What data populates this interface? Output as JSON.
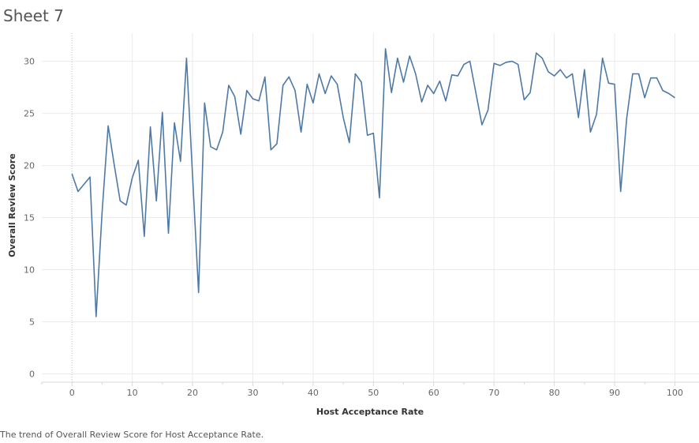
{
  "sheet": {
    "title": "Sheet 7",
    "caption": "The trend of Overall Review Score for Host Acceptance Rate."
  },
  "colors": {
    "line": "#4e79a7"
  },
  "chart_data": {
    "type": "line",
    "xlabel": "Host Acceptance Rate",
    "ylabel": "Overall Review Score",
    "xlim": [
      -5,
      104
    ],
    "ylim": [
      -0.8,
      32.7
    ],
    "xticks": [
      0,
      10,
      20,
      30,
      40,
      50,
      60,
      70,
      80,
      90,
      100
    ],
    "yticks": [
      0,
      5,
      10,
      15,
      20,
      25,
      30
    ],
    "grid": true,
    "legend": "none",
    "series": [
      {
        "x": [
          0,
          1,
          3,
          4,
          5,
          6,
          7,
          8,
          9,
          10,
          11,
          12,
          13,
          14,
          15,
          16,
          17,
          18,
          19,
          21,
          22,
          23,
          24,
          25,
          26,
          27,
          28,
          29,
          30,
          31,
          32,
          33,
          34,
          35,
          36,
          37,
          38,
          39,
          40,
          41,
          42,
          43,
          44,
          45,
          46,
          47,
          48,
          49,
          50,
          51,
          52,
          53,
          54,
          55,
          56,
          57,
          58,
          59,
          60,
          61,
          62,
          63,
          64,
          65,
          66,
          68,
          69,
          70,
          71,
          72,
          73,
          74,
          75,
          76,
          77,
          78,
          79,
          80,
          81,
          82,
          83,
          84,
          85,
          86,
          87,
          88,
          89,
          90,
          91,
          92,
          93,
          94,
          95,
          96,
          97,
          98,
          99,
          100
        ],
        "y": [
          19.2,
          17.5,
          18.9,
          5.5,
          15.5,
          23.8,
          20.1,
          16.6,
          16.2,
          18.8,
          20.5,
          13.2,
          23.7,
          16.6,
          25.1,
          13.5,
          24.1,
          20.4,
          30.3,
          7.8,
          26.0,
          21.8,
          21.5,
          23.2,
          27.7,
          26.6,
          23.0,
          27.2,
          26.4,
          26.2,
          28.5,
          21.5,
          22.1,
          27.7,
          28.5,
          27.2,
          23.2,
          27.8,
          26.0,
          28.8,
          26.9,
          28.6,
          27.8,
          24.6,
          22.2,
          28.8,
          28.0,
          22.9,
          23.1,
          16.9,
          31.2,
          27.0,
          30.3,
          28.0,
          30.5,
          28.8,
          26.1,
          27.7,
          26.9,
          28.1,
          26.2,
          28.7,
          28.6,
          29.7,
          30.0,
          23.9,
          25.3,
          29.8,
          29.6,
          29.9,
          30.0,
          29.7,
          26.3,
          27.0,
          30.8,
          30.3,
          29.0,
          28.6,
          29.2,
          28.4,
          28.8,
          24.6,
          29.2,
          23.2,
          24.9,
          30.3,
          27.9,
          27.8,
          17.5,
          24.5,
          28.8,
          28.8,
          26.5,
          28.4,
          28.4,
          27.2,
          26.9,
          26.5
        ]
      }
    ]
  }
}
